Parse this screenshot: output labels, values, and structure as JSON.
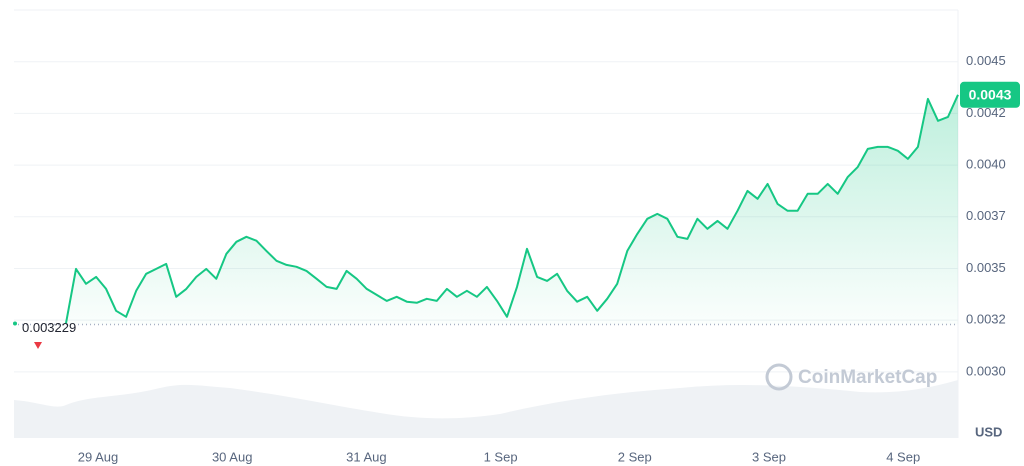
{
  "chart_data": {
    "type": "line",
    "color": "#16c784",
    "values": [
      0.003235,
      0.003498,
      0.003426,
      0.003459,
      0.003401,
      0.003295,
      0.003266,
      0.003392,
      0.003474,
      0.003498,
      0.003522,
      0.003363,
      0.003401,
      0.003459,
      0.003498,
      0.00345,
      0.003571,
      0.003629,
      0.003653,
      0.003634,
      0.003585,
      0.003537,
      0.003517,
      0.003508,
      0.003488,
      0.00345,
      0.003411,
      0.003401,
      0.003488,
      0.00345,
      0.003401,
      0.003372,
      0.003343,
      0.003363,
      0.003339,
      0.003334,
      0.003353,
      0.003343,
      0.003401,
      0.003363,
      0.003392,
      0.003363,
      0.003411,
      0.003343,
      0.003266,
      0.003411,
      0.003595,
      0.003459,
      0.00344,
      0.003474,
      0.003392,
      0.003339,
      0.003363,
      0.003295,
      0.003353,
      0.003426,
      0.003585,
      0.003667,
      0.00374,
      0.003764,
      0.00374,
      0.003653,
      0.003643,
      0.00374,
      0.003692,
      0.00373,
      0.003692,
      0.003779,
      0.003875,
      0.003837,
      0.003909,
      0.003812,
      0.003779,
      0.003779,
      0.003861,
      0.003861,
      0.003909,
      0.003861,
      0.003943,
      0.003991,
      0.004078,
      0.004088,
      0.004088,
      0.004069,
      0.00403,
      0.004088,
      0.00432,
      0.004214,
      0.004233,
      0.00434
    ],
    "x_labels": [
      "29 Aug",
      "30 Aug",
      "31 Aug",
      "1 Sep",
      "2 Sep",
      "3 Sep",
      "4 Sep"
    ],
    "ylim": [
      0.00268,
      0.00475
    ],
    "yticks": [
      {
        "value": 0.003,
        "label": "0.0030"
      },
      {
        "value": 0.00325,
        "label": "0.0032"
      },
      {
        "value": 0.0035,
        "label": "0.0035"
      },
      {
        "value": 0.00375,
        "label": "0.0037"
      },
      {
        "value": 0.004,
        "label": "0.0040"
      },
      {
        "value": 0.00425,
        "label": "0.0042"
      },
      {
        "value": 0.0045,
        "label": "0.0045"
      }
    ],
    "grid": true,
    "baseline": 0.003229,
    "current_price_label": "0.0043",
    "currency": "USD",
    "watermark": "CoinMarketCap"
  }
}
